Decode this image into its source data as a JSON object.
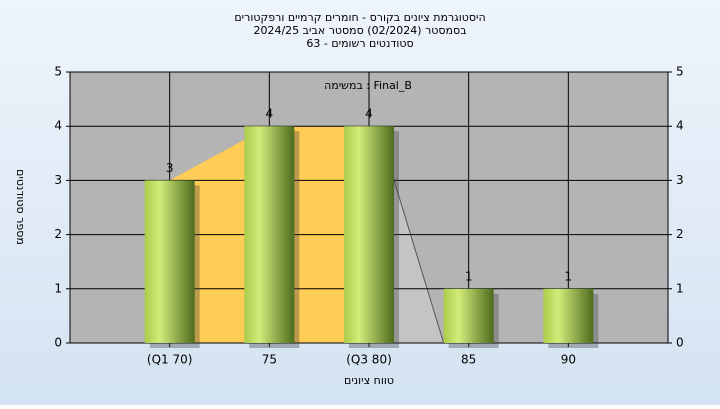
{
  "chart_data": {
    "type": "bar",
    "title": "היסטוגרמת ציונים בקורס - חומרים קרמיים ורפקטורים",
    "subtitle": "בסמסטר (02/2024) סמסטר אביב 2024/25",
    "subtitle2": "סטודנטים רשומים - 63",
    "legend_text": "Final_B : במשימה",
    "x_label": "טווח ציונים",
    "y_label": "מספר סטודנטים",
    "categories": [
      "(Q1 70)",
      "75",
      "(Q3 80)",
      "85",
      "90"
    ],
    "values": [
      3,
      4,
      4,
      1,
      1
    ],
    "color": "#8fb33a",
    "ylim": [
      0,
      5
    ],
    "yticks": [
      0,
      1,
      2,
      3,
      4,
      5
    ],
    "grid": true
  }
}
